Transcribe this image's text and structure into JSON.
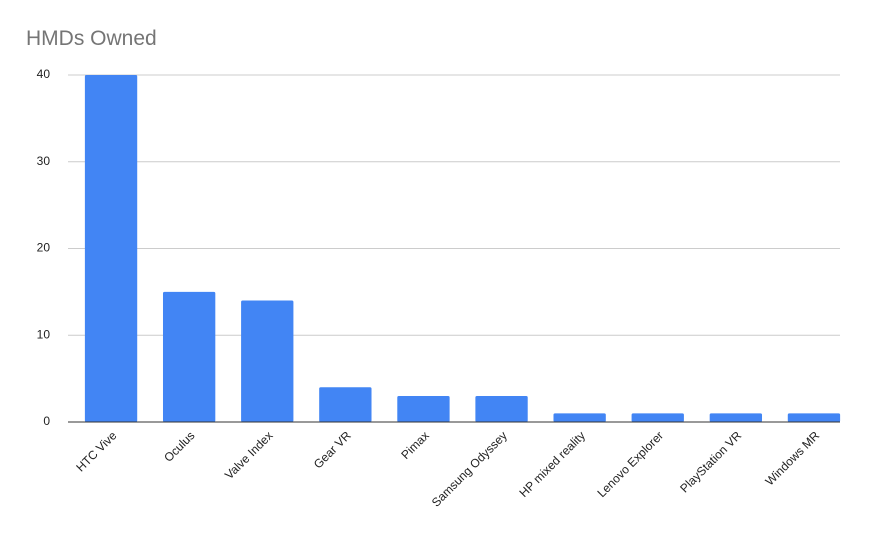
{
  "chart_data": {
    "type": "bar",
    "title": "HMDs Owned",
    "categories": [
      "HTC Vive",
      "Oculus",
      "Valve Index",
      "Gear VR",
      "Pimax",
      "Samsung Odyssey",
      "HP mixed reality",
      "Lenovo Explorer",
      "PlayStation VR",
      "Windows MR"
    ],
    "values": [
      40,
      15,
      14,
      4,
      3,
      3,
      1,
      1,
      1,
      1
    ],
    "color": "#4285f4",
    "ylim": [
      0,
      40
    ],
    "yticks": [
      0,
      10,
      20,
      30,
      40
    ],
    "grid": true
  }
}
